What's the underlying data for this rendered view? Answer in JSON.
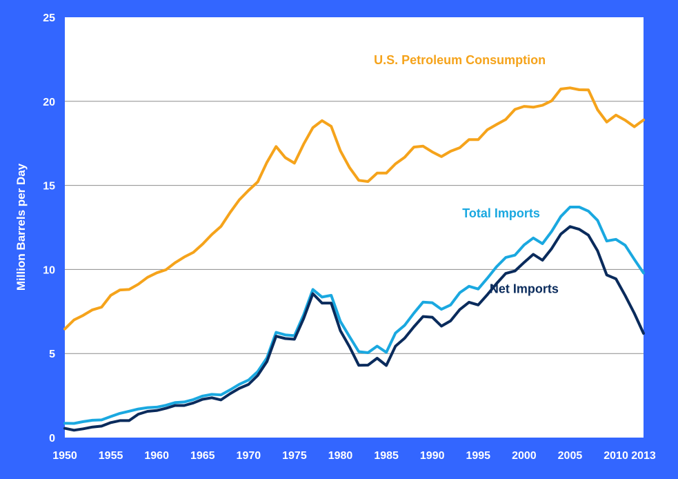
{
  "chart_data": {
    "type": "line",
    "title": "",
    "xlabel": "",
    "ylabel": "Million Barrels per Day",
    "xlim": [
      1950,
      2013
    ],
    "ylim": [
      0,
      25
    ],
    "x_ticks": [
      "1950",
      "1955",
      "1960",
      "1965",
      "1970",
      "1975",
      "1980",
      "1985",
      "1990",
      "1995",
      "2000",
      "2005",
      "2010",
      "2013"
    ],
    "y_ticks": [
      "0",
      "5",
      "10",
      "15",
      "20",
      "25"
    ],
    "grid": "horizontal",
    "background_color": "#3366ff",
    "plot_background": "#ffffff",
    "x": [
      1950,
      1951,
      1952,
      1953,
      1954,
      1955,
      1956,
      1957,
      1958,
      1959,
      1960,
      1961,
      1962,
      1963,
      1964,
      1965,
      1966,
      1967,
      1968,
      1969,
      1970,
      1971,
      1972,
      1973,
      1974,
      1975,
      1976,
      1977,
      1978,
      1979,
      1980,
      1981,
      1982,
      1983,
      1984,
      1985,
      1986,
      1987,
      1988,
      1989,
      1990,
      1991,
      1992,
      1993,
      1994,
      1995,
      1996,
      1997,
      1998,
      1999,
      2000,
      2001,
      2002,
      2003,
      2004,
      2005,
      2006,
      2007,
      2008,
      2009,
      2010,
      2011,
      2012,
      2013
    ],
    "series": [
      {
        "name": "U.S. Petroleum Consumption",
        "color": "#f5a31b",
        "values": [
          6.46,
          7.0,
          7.27,
          7.6,
          7.76,
          8.46,
          8.78,
          8.81,
          9.12,
          9.53,
          9.8,
          9.98,
          10.4,
          10.74,
          11.02,
          11.51,
          12.08,
          12.56,
          13.39,
          14.14,
          14.7,
          15.21,
          16.37,
          17.31,
          16.65,
          16.32,
          17.46,
          18.43,
          18.85,
          18.51,
          17.06,
          16.06,
          15.3,
          15.23,
          15.73,
          15.73,
          16.28,
          16.67,
          17.28,
          17.33,
          16.99,
          16.71,
          17.03,
          17.24,
          17.72,
          17.72,
          18.31,
          18.62,
          18.92,
          19.52,
          19.7,
          19.65,
          19.76,
          20.03,
          20.73,
          20.8,
          20.69,
          20.68,
          19.5,
          18.77,
          19.18,
          18.88,
          18.49,
          18.89
        ]
      },
      {
        "name": "Total Imports",
        "color": "#1aa8e0",
        "values": [
          0.85,
          0.84,
          0.95,
          1.03,
          1.05,
          1.25,
          1.44,
          1.57,
          1.7,
          1.78,
          1.81,
          1.92,
          2.08,
          2.12,
          2.26,
          2.47,
          2.57,
          2.54,
          2.84,
          3.17,
          3.42,
          3.93,
          4.74,
          6.26,
          6.11,
          6.06,
          7.31,
          8.81,
          8.36,
          8.46,
          6.91,
          6.0,
          5.11,
          5.05,
          5.44,
          5.07,
          6.22,
          6.68,
          7.4,
          8.06,
          8.02,
          7.63,
          7.89,
          8.62,
          9.0,
          8.84,
          9.48,
          10.16,
          10.71,
          10.85,
          11.46,
          11.87,
          11.53,
          12.26,
          13.15,
          13.71,
          13.71,
          13.47,
          12.92,
          11.69,
          11.79,
          11.44,
          10.6,
          9.79
        ]
      },
      {
        "name": "Net Imports",
        "color": "#0a2b5c",
        "values": [
          0.55,
          0.44,
          0.52,
          0.63,
          0.68,
          0.89,
          1.01,
          1.01,
          1.39,
          1.56,
          1.61,
          1.74,
          1.91,
          1.91,
          2.06,
          2.28,
          2.37,
          2.24,
          2.61,
          2.93,
          3.16,
          3.7,
          4.52,
          6.03,
          5.89,
          5.85,
          7.09,
          8.56,
          8.0,
          8.0,
          6.36,
          5.4,
          4.3,
          4.31,
          4.72,
          4.29,
          5.44,
          5.91,
          6.59,
          7.2,
          7.16,
          6.63,
          6.94,
          7.62,
          8.05,
          7.89,
          8.5,
          9.16,
          9.76,
          9.91,
          10.42,
          10.9,
          10.55,
          11.24,
          12.1,
          12.55,
          12.39,
          12.04,
          11.11,
          9.67,
          9.44,
          8.45,
          7.39,
          6.2
        ]
      }
    ],
    "annotations": [
      {
        "text": "U.S. Petroleum Consumption",
        "series": 0,
        "x": 1993,
        "y": 22.2
      },
      {
        "text": "Total Imports",
        "series": 1,
        "x": 1997.5,
        "y": 13.1
      },
      {
        "text": "Net Imports",
        "series": 2,
        "x": 2000,
        "y": 8.6
      }
    ]
  }
}
